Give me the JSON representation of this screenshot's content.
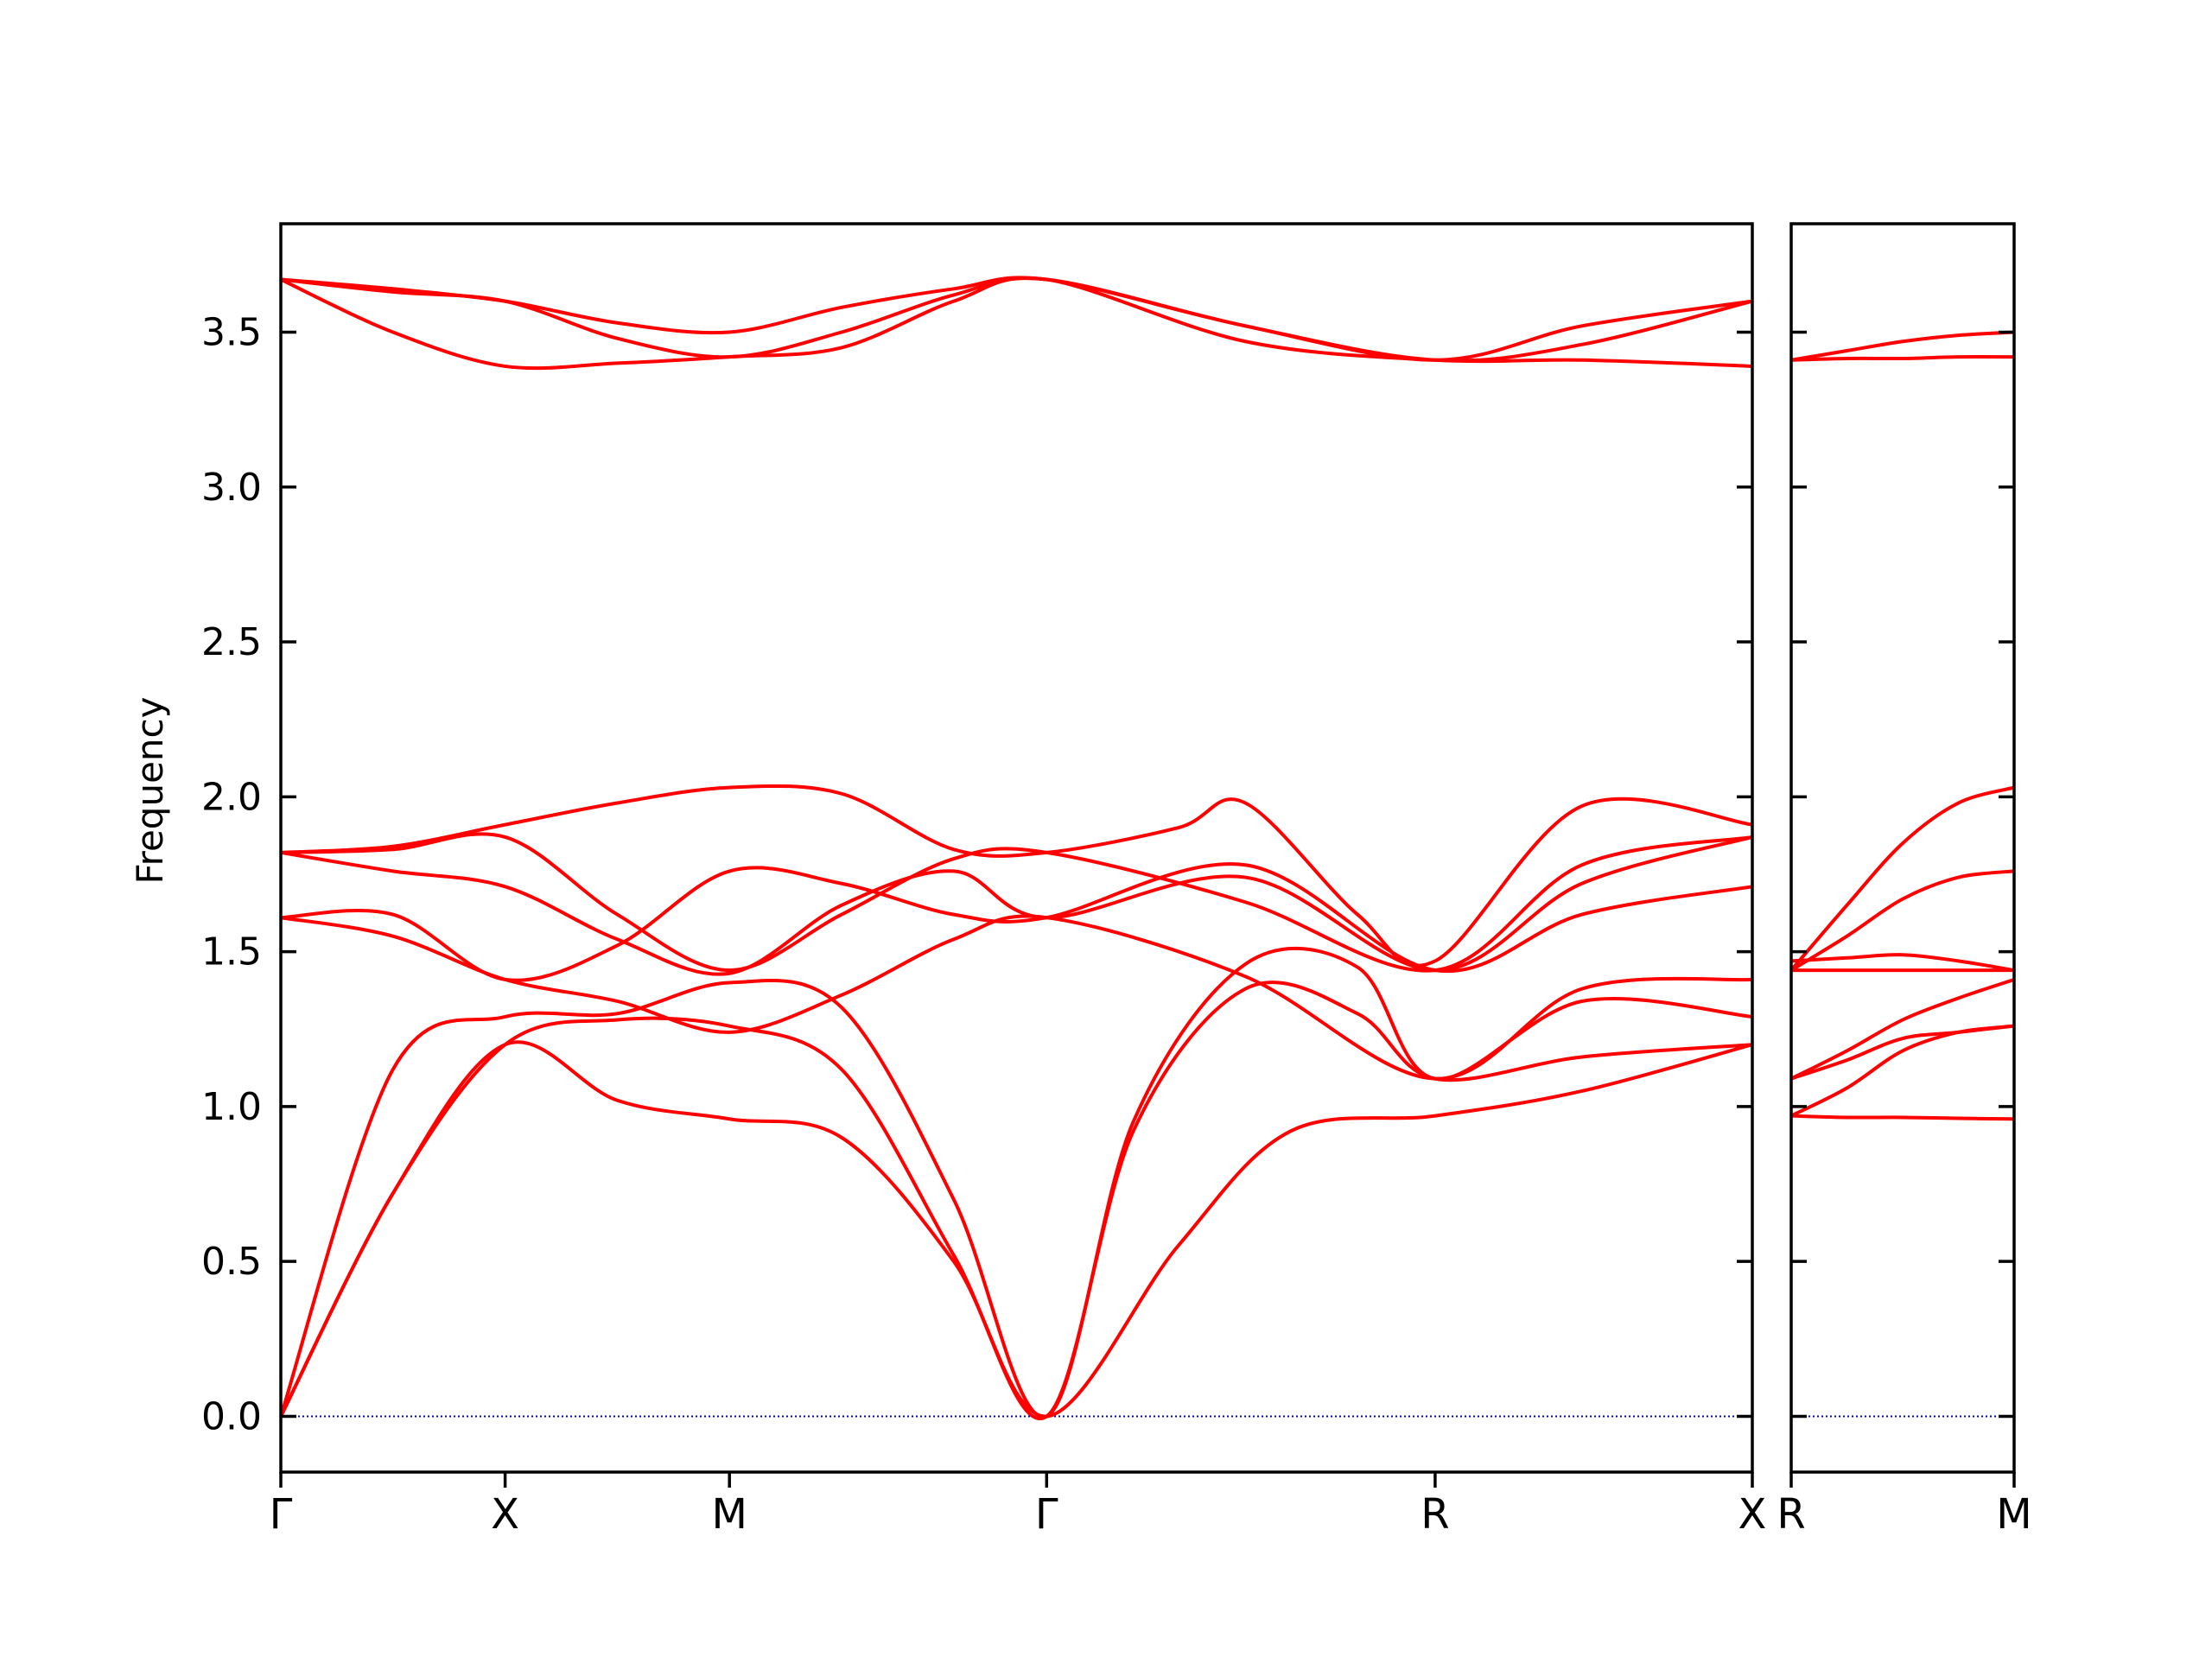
{
  "chart_data": {
    "type": "line",
    "ylabel": "Frequency",
    "ylim": [
      -0.18,
      3.85
    ],
    "yticks": [
      "0.0",
      "0.5",
      "1.0",
      "1.5",
      "2.0",
      "2.5",
      "3.0",
      "3.5"
    ],
    "yticks_values": [
      0.0,
      0.5,
      1.0,
      1.5,
      2.0,
      2.5,
      3.0,
      3.5
    ],
    "grid": false,
    "line_color": "#ff0000",
    "zero_line_color": "#0000cc",
    "panels": [
      {
        "labels": [
          "Γ",
          "X",
          "M",
          "Γ",
          "R",
          "X"
        ],
        "label_positions": [
          0,
          1,
          2,
          3.414,
          5.146,
          6.56
        ],
        "xlim": [
          0,
          6.56
        ],
        "bands": [
          {
            "x": [
              0,
              0.5,
              1,
              1.5,
              2,
              2.5,
              3,
              3.414,
              4,
              4.5,
              5.146,
              5.8,
              6.56
            ],
            "y": [
              0.0,
              0.72,
              1.2,
              1.02,
              0.96,
              0.9,
              0.5,
              0.0,
              0.55,
              0.92,
              0.97,
              1.05,
              1.2
            ]
          },
          {
            "x": [
              0,
              0.5,
              1,
              1.5,
              2,
              2.5,
              3,
              3.414,
              3.8,
              4.3,
              4.8,
              5.146,
              5.8,
              6.56
            ],
            "y": [
              0.0,
              0.72,
              1.2,
              1.28,
              1.26,
              1.12,
              0.52,
              0.0,
              0.92,
              1.38,
              1.3,
              1.09,
              1.16,
              1.2
            ]
          },
          {
            "x": [
              0,
              0.5,
              1,
              1.5,
              2,
              2.5,
              3,
              3.414,
              3.8,
              4.3,
              4.8,
              5.146,
              5.8,
              6.56
            ],
            "y": [
              0.0,
              1.12,
              1.29,
              1.3,
              1.4,
              1.32,
              0.7,
              0.0,
              0.95,
              1.46,
              1.45,
              1.09,
              1.34,
              1.29
            ]
          },
          {
            "x": [
              0,
              0.5,
              1,
              1.5,
              2,
              2.5,
              3,
              3.414,
              4.3,
              5.146,
              5.8,
              6.56
            ],
            "y": [
              1.61,
              1.55,
              1.41,
              1.34,
              1.24,
              1.36,
              1.54,
              1.61,
              1.42,
              1.09,
              1.38,
              1.41
            ]
          },
          {
            "x": [
              0,
              0.5,
              1,
              1.5,
              2,
              2.5,
              3,
              3.414,
              4.3,
              5.146,
              5.8,
              6.56
            ],
            "y": [
              1.61,
              1.62,
              1.41,
              1.52,
              1.76,
              1.72,
              1.62,
              1.61,
              1.78,
              1.44,
              1.62,
              1.71
            ]
          },
          {
            "x": [
              0,
              0.5,
              1,
              1.5,
              2,
              2.5,
              3,
              3.414,
              4.3,
              5.146,
              5.8,
              6.56
            ],
            "y": [
              1.82,
              1.76,
              1.71,
              1.54,
              1.43,
              1.65,
              1.76,
              1.61,
              1.74,
              1.44,
              1.72,
              1.87
            ]
          },
          {
            "x": [
              0,
              0.5,
              1,
              1.5,
              2,
              2.5,
              3,
              3.414,
              4.3,
              5.146,
              5.8,
              6.56
            ],
            "y": [
              1.82,
              1.83,
              1.87,
              1.62,
              1.44,
              1.62,
              1.8,
              1.82,
              1.66,
              1.44,
              1.78,
              1.87
            ]
          },
          {
            "x": [
              0,
              0.5,
              1,
              1.5,
              2,
              2.5,
              3,
              3.414,
              4.0,
              4.3,
              4.8,
              5.146,
              5.8,
              6.56
            ],
            "y": [
              1.82,
              1.84,
              1.91,
              1.98,
              2.03,
              2.01,
              1.83,
              1.82,
              1.9,
              1.98,
              1.62,
              1.47,
              1.97,
              1.91
            ]
          },
          {
            "x": [
              0,
              0.5,
              1,
              1.5,
              2,
              2.5,
              3,
              3.414,
              4.3,
              5.146,
              5.8,
              6.56
            ],
            "y": [
              3.67,
              3.5,
              3.39,
              3.4,
              3.42,
              3.45,
              3.6,
              3.67,
              3.47,
              3.41,
              3.41,
              3.39
            ]
          },
          {
            "x": [
              0,
              0.5,
              1,
              1.5,
              2,
              2.5,
              3,
              3.414,
              4.3,
              5.146,
              5.8,
              6.56
            ],
            "y": [
              3.67,
              3.63,
              3.6,
              3.48,
              3.42,
              3.5,
              3.62,
              3.67,
              3.52,
              3.41,
              3.46,
              3.6
            ]
          },
          {
            "x": [
              0,
              0.5,
              1,
              1.5,
              2,
              2.5,
              3,
              3.414,
              4.3,
              5.146,
              5.8,
              6.56
            ],
            "y": [
              3.67,
              3.64,
              3.6,
              3.53,
              3.5,
              3.58,
              3.64,
              3.67,
              3.52,
              3.41,
              3.52,
              3.6
            ]
          }
        ]
      },
      {
        "labels": [
          "R",
          "M"
        ],
        "label_positions": [
          0,
          1
        ],
        "xlim": [
          0,
          1
        ],
        "bands": [
          {
            "x": [
              0,
              0.25,
              0.5,
              0.75,
              1
            ],
            "y": [
              0.97,
              0.965,
              0.965,
              0.962,
              0.96
            ]
          },
          {
            "x": [
              0,
              0.25,
              0.5,
              0.75,
              1
            ],
            "y": [
              0.97,
              1.06,
              1.18,
              1.24,
              1.26
            ]
          },
          {
            "x": [
              0,
              0.25,
              0.5,
              0.75,
              1
            ],
            "y": [
              1.09,
              1.15,
              1.22,
              1.24,
              1.26
            ]
          },
          {
            "x": [
              0,
              0.25,
              0.5,
              0.75,
              1
            ],
            "y": [
              1.09,
              1.18,
              1.28,
              1.35,
              1.41
            ]
          },
          {
            "x": [
              0,
              0.25,
              0.5,
              0.75,
              1
            ],
            "y": [
              1.44,
              1.44,
              1.44,
              1.44,
              1.44
            ]
          },
          {
            "x": [
              0,
              0.25,
              0.5,
              0.75,
              1
            ],
            "y": [
              1.44,
              1.55,
              1.67,
              1.74,
              1.76
            ]
          },
          {
            "x": [
              0,
              0.25,
              0.5,
              0.75,
              1
            ],
            "y": [
              1.44,
              1.65,
              1.85,
              1.98,
              2.03
            ]
          },
          {
            "x": [
              0,
              0.25,
              0.5,
              0.75,
              1
            ],
            "y": [
              1.47,
              1.48,
              1.49,
              1.47,
              1.44
            ]
          },
          {
            "x": [
              0,
              0.25,
              0.5,
              0.75,
              1
            ],
            "y": [
              3.41,
              3.415,
              3.415,
              3.42,
              3.42
            ]
          },
          {
            "x": [
              0,
              0.25,
              0.5,
              0.75,
              1
            ],
            "y": [
              3.41,
              3.44,
              3.47,
              3.49,
              3.5
            ]
          }
        ]
      }
    ]
  }
}
